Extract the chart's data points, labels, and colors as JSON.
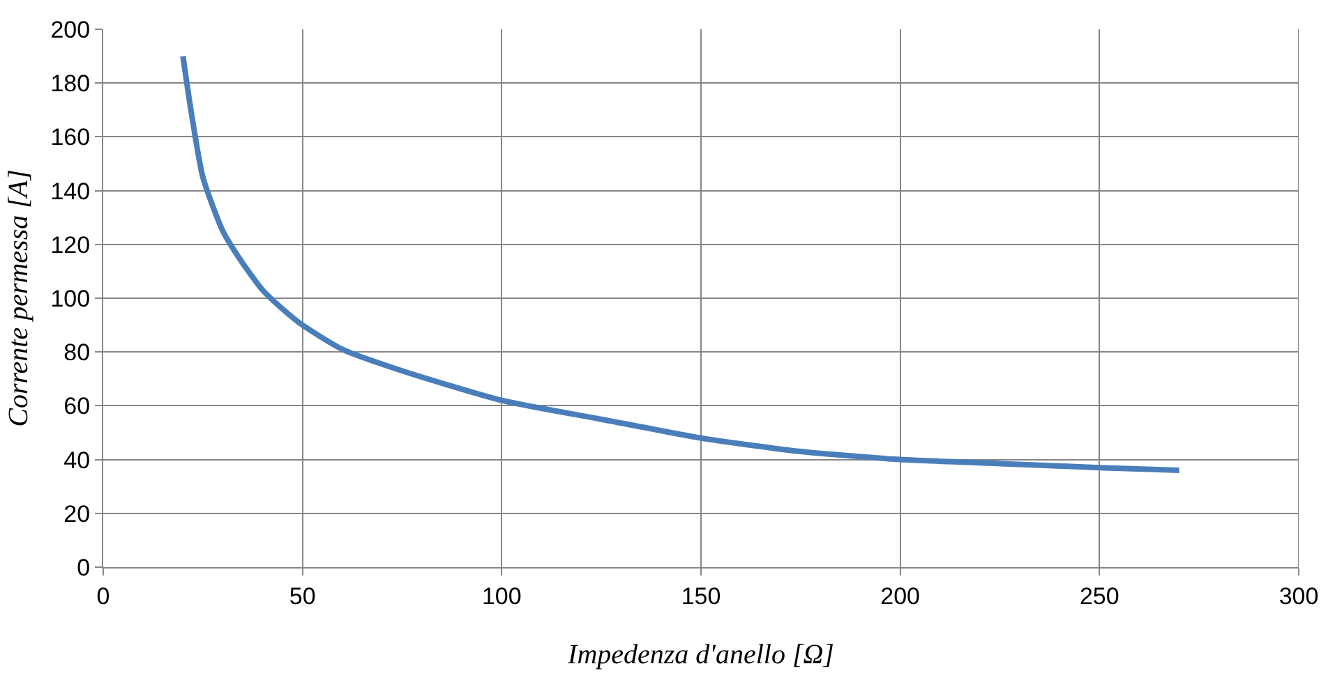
{
  "chart_data": {
    "type": "line",
    "xlabel": "Impedenza d'anello [Ω]",
    "ylabel": "Corrente permessa [A]",
    "x": [
      20,
      22,
      25,
      30,
      35,
      40,
      45,
      50,
      60,
      75,
      100,
      125,
      150,
      175,
      200,
      225,
      250,
      270
    ],
    "series": [
      {
        "color": "#4a7ebb",
        "values": [
          190,
          170,
          145,
          125,
          113,
          103,
          96,
          90,
          81,
          73,
          62,
          55,
          48,
          43,
          40,
          38.5,
          37,
          36
        ]
      }
    ],
    "xlim": [
      0,
      300
    ],
    "ylim": [
      0,
      200
    ],
    "xticks": [
      0,
      50,
      100,
      150,
      200,
      250,
      300
    ],
    "yticks": [
      0,
      20,
      40,
      60,
      80,
      100,
      120,
      140,
      160,
      180,
      200
    ],
    "grid": true
  }
}
